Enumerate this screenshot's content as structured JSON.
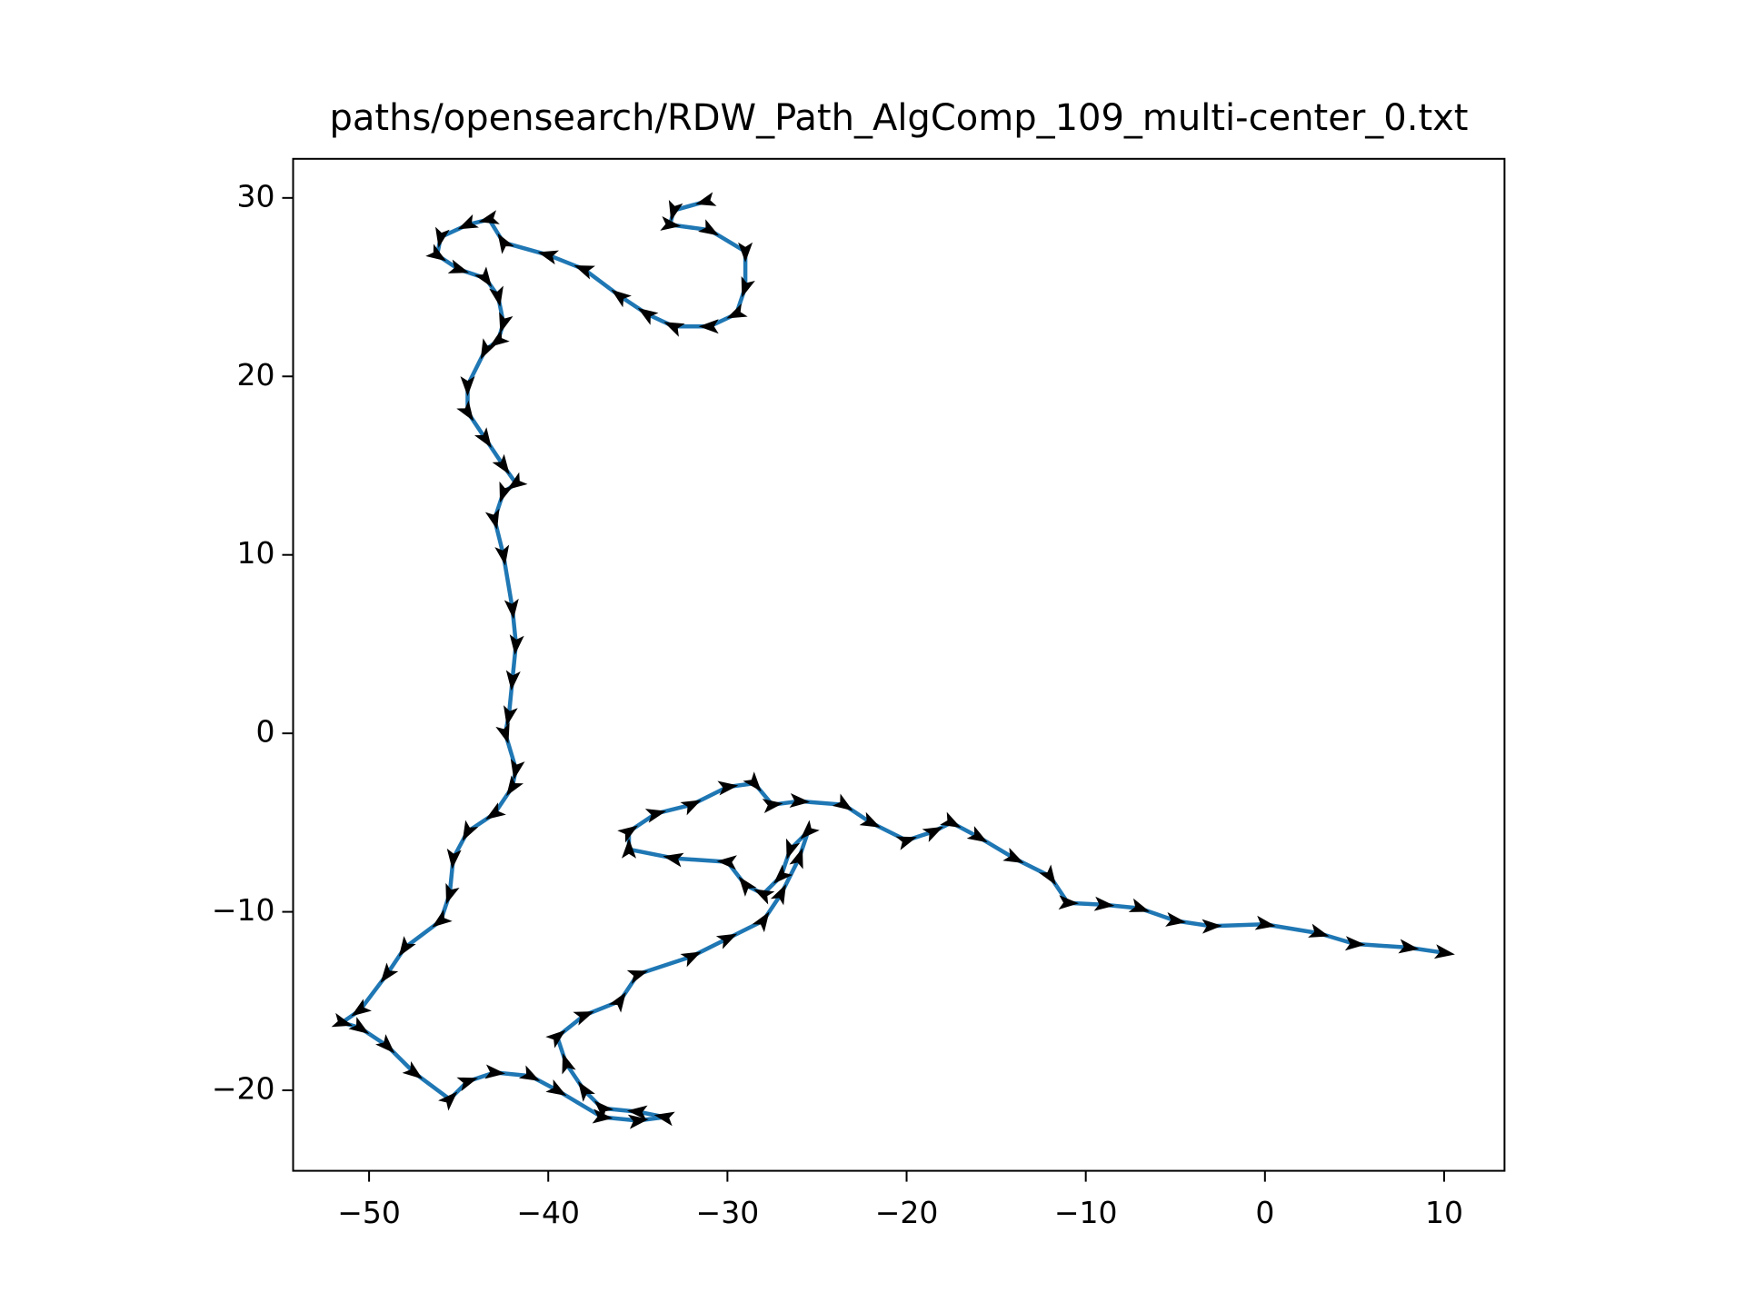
{
  "chart_data": {
    "type": "line",
    "title": "paths/opensearch/RDW_Path_AlgComp_109_multi-center_0.txt",
    "x": [
      -31.2,
      -33,
      -33.2,
      -31,
      -29,
      -29,
      -29.5,
      -31,
      -33,
      -34.5,
      -36,
      -38,
      -40,
      -42.5,
      -43.3,
      -44.5,
      -46,
      -46.2,
      -45,
      -43.5,
      -42.8,
      -42.5,
      -42.8,
      -43.5,
      -44.5,
      -44.5,
      -43.5,
      -42.5,
      -41.8,
      -42.5,
      -43,
      -42.5,
      -42,
      -41.8,
      -42,
      -42.2,
      -42.4,
      -41.8,
      -42,
      -43,
      -44.5,
      -45.3,
      -45.5,
      -46,
      -48,
      -49,
      -50.5,
      -51.5,
      -50.5,
      -49,
      -47.5,
      -45.5,
      -44.5,
      -43,
      -41,
      -39.5,
      -37,
      -35,
      -33.5,
      -35,
      -37,
      -38,
      -39,
      -39.5,
      -38,
      -36,
      -35,
      -32,
      -30,
      -28,
      -27,
      -26,
      -25.5,
      -26.5,
      -27,
      -28,
      -29,
      -30,
      -33,
      -35.5,
      -35.5,
      -34,
      -32,
      -30,
      -28.5,
      -27.5,
      -26,
      -23.5,
      -22,
      -20,
      -18.5,
      -17.5,
      -16,
      -14,
      -12,
      -11,
      -9,
      -7,
      -5,
      -3,
      0,
      3,
      5,
      8,
      10
    ],
    "series": [
      {
        "color": "#1f77b4",
        "values": [
          29.8,
          29.3,
          28.5,
          28.2,
          27,
          25,
          23.5,
          22.8,
          22.8,
          23.5,
          24.5,
          26,
          26.8,
          27.5,
          28.8,
          28.5,
          27.8,
          26.8,
          26,
          25.5,
          24.5,
          23,
          22,
          21.5,
          19.5,
          18,
          16.5,
          15,
          14,
          13.5,
          12,
          10,
          7,
          5,
          3,
          1,
          0,
          -2,
          -3,
          -4.5,
          -5.5,
          -7,
          -9,
          -10.5,
          -12,
          -13.5,
          -15.5,
          -16.2,
          -16.5,
          -17.5,
          -19,
          -20.5,
          -19.5,
          -19,
          -19.2,
          -20,
          -21.5,
          -21.7,
          -21.5,
          -21.2,
          -21,
          -20,
          -18.5,
          -17,
          -15.8,
          -15,
          -13.5,
          -12.5,
          -11.5,
          -10.5,
          -9,
          -7,
          -5.5,
          -6.5,
          -8,
          -9,
          -8.5,
          -7.2,
          -7,
          -6.5,
          -5.5,
          -4.5,
          -4,
          -3,
          -2.8,
          -4,
          -3.8,
          -4,
          -5,
          -6,
          -5.5,
          -5,
          -5.8,
          -7,
          -8,
          -9.5,
          -9.6,
          -9.8,
          -10.5,
          -10.8,
          -10.7,
          -11.2,
          -11.8,
          -12,
          -12.3
        ]
      }
    ],
    "arrow_color": "#000000",
    "xlim": [
      -54.24,
      13.37
    ],
    "ylim": [
      -24.51,
      32.19
    ],
    "xticks": [
      {
        "value": -50,
        "label": "−50"
      },
      {
        "value": -40,
        "label": "−40"
      },
      {
        "value": -30,
        "label": "−30"
      },
      {
        "value": -20,
        "label": "−20"
      },
      {
        "value": -10,
        "label": "−10"
      },
      0,
      10
    ],
    "yticks": [
      {
        "value": -20,
        "label": "−20"
      },
      {
        "value": -10,
        "label": "−10"
      },
      0,
      10,
      20,
      30
    ]
  }
}
